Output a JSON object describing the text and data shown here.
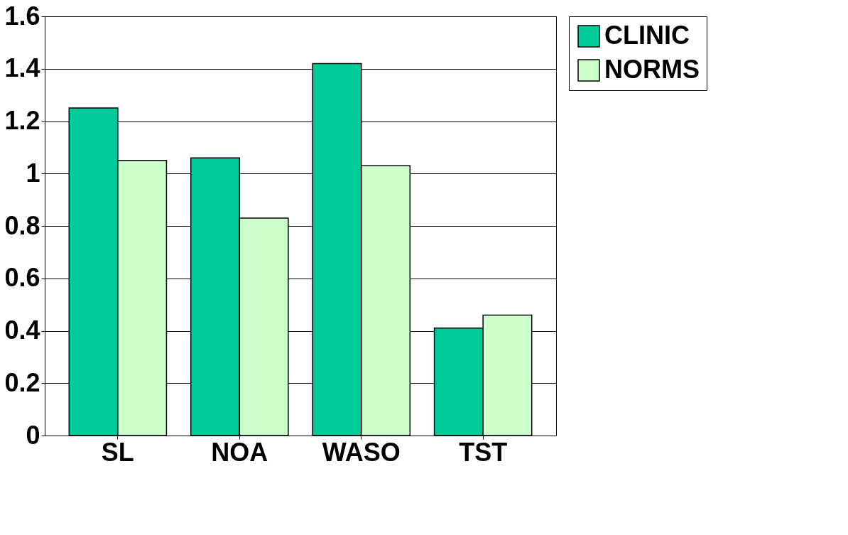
{
  "chart_data": {
    "type": "bar",
    "categories": [
      "SL",
      "NOA",
      "WASO",
      "TST"
    ],
    "series": [
      {
        "name": "CLINIC",
        "color": "#00cc99",
        "values": [
          1.25,
          1.06,
          1.42,
          0.41
        ]
      },
      {
        "name": "NORMS",
        "color": "#ccffcc",
        "values": [
          1.05,
          0.83,
          1.03,
          0.46
        ]
      }
    ],
    "ylim": [
      0,
      1.6
    ],
    "yticks": [
      0,
      0.2,
      0.4,
      0.6,
      0.8,
      1,
      1.2,
      1.4,
      1.6
    ],
    "grid": "y",
    "legend": "right"
  }
}
